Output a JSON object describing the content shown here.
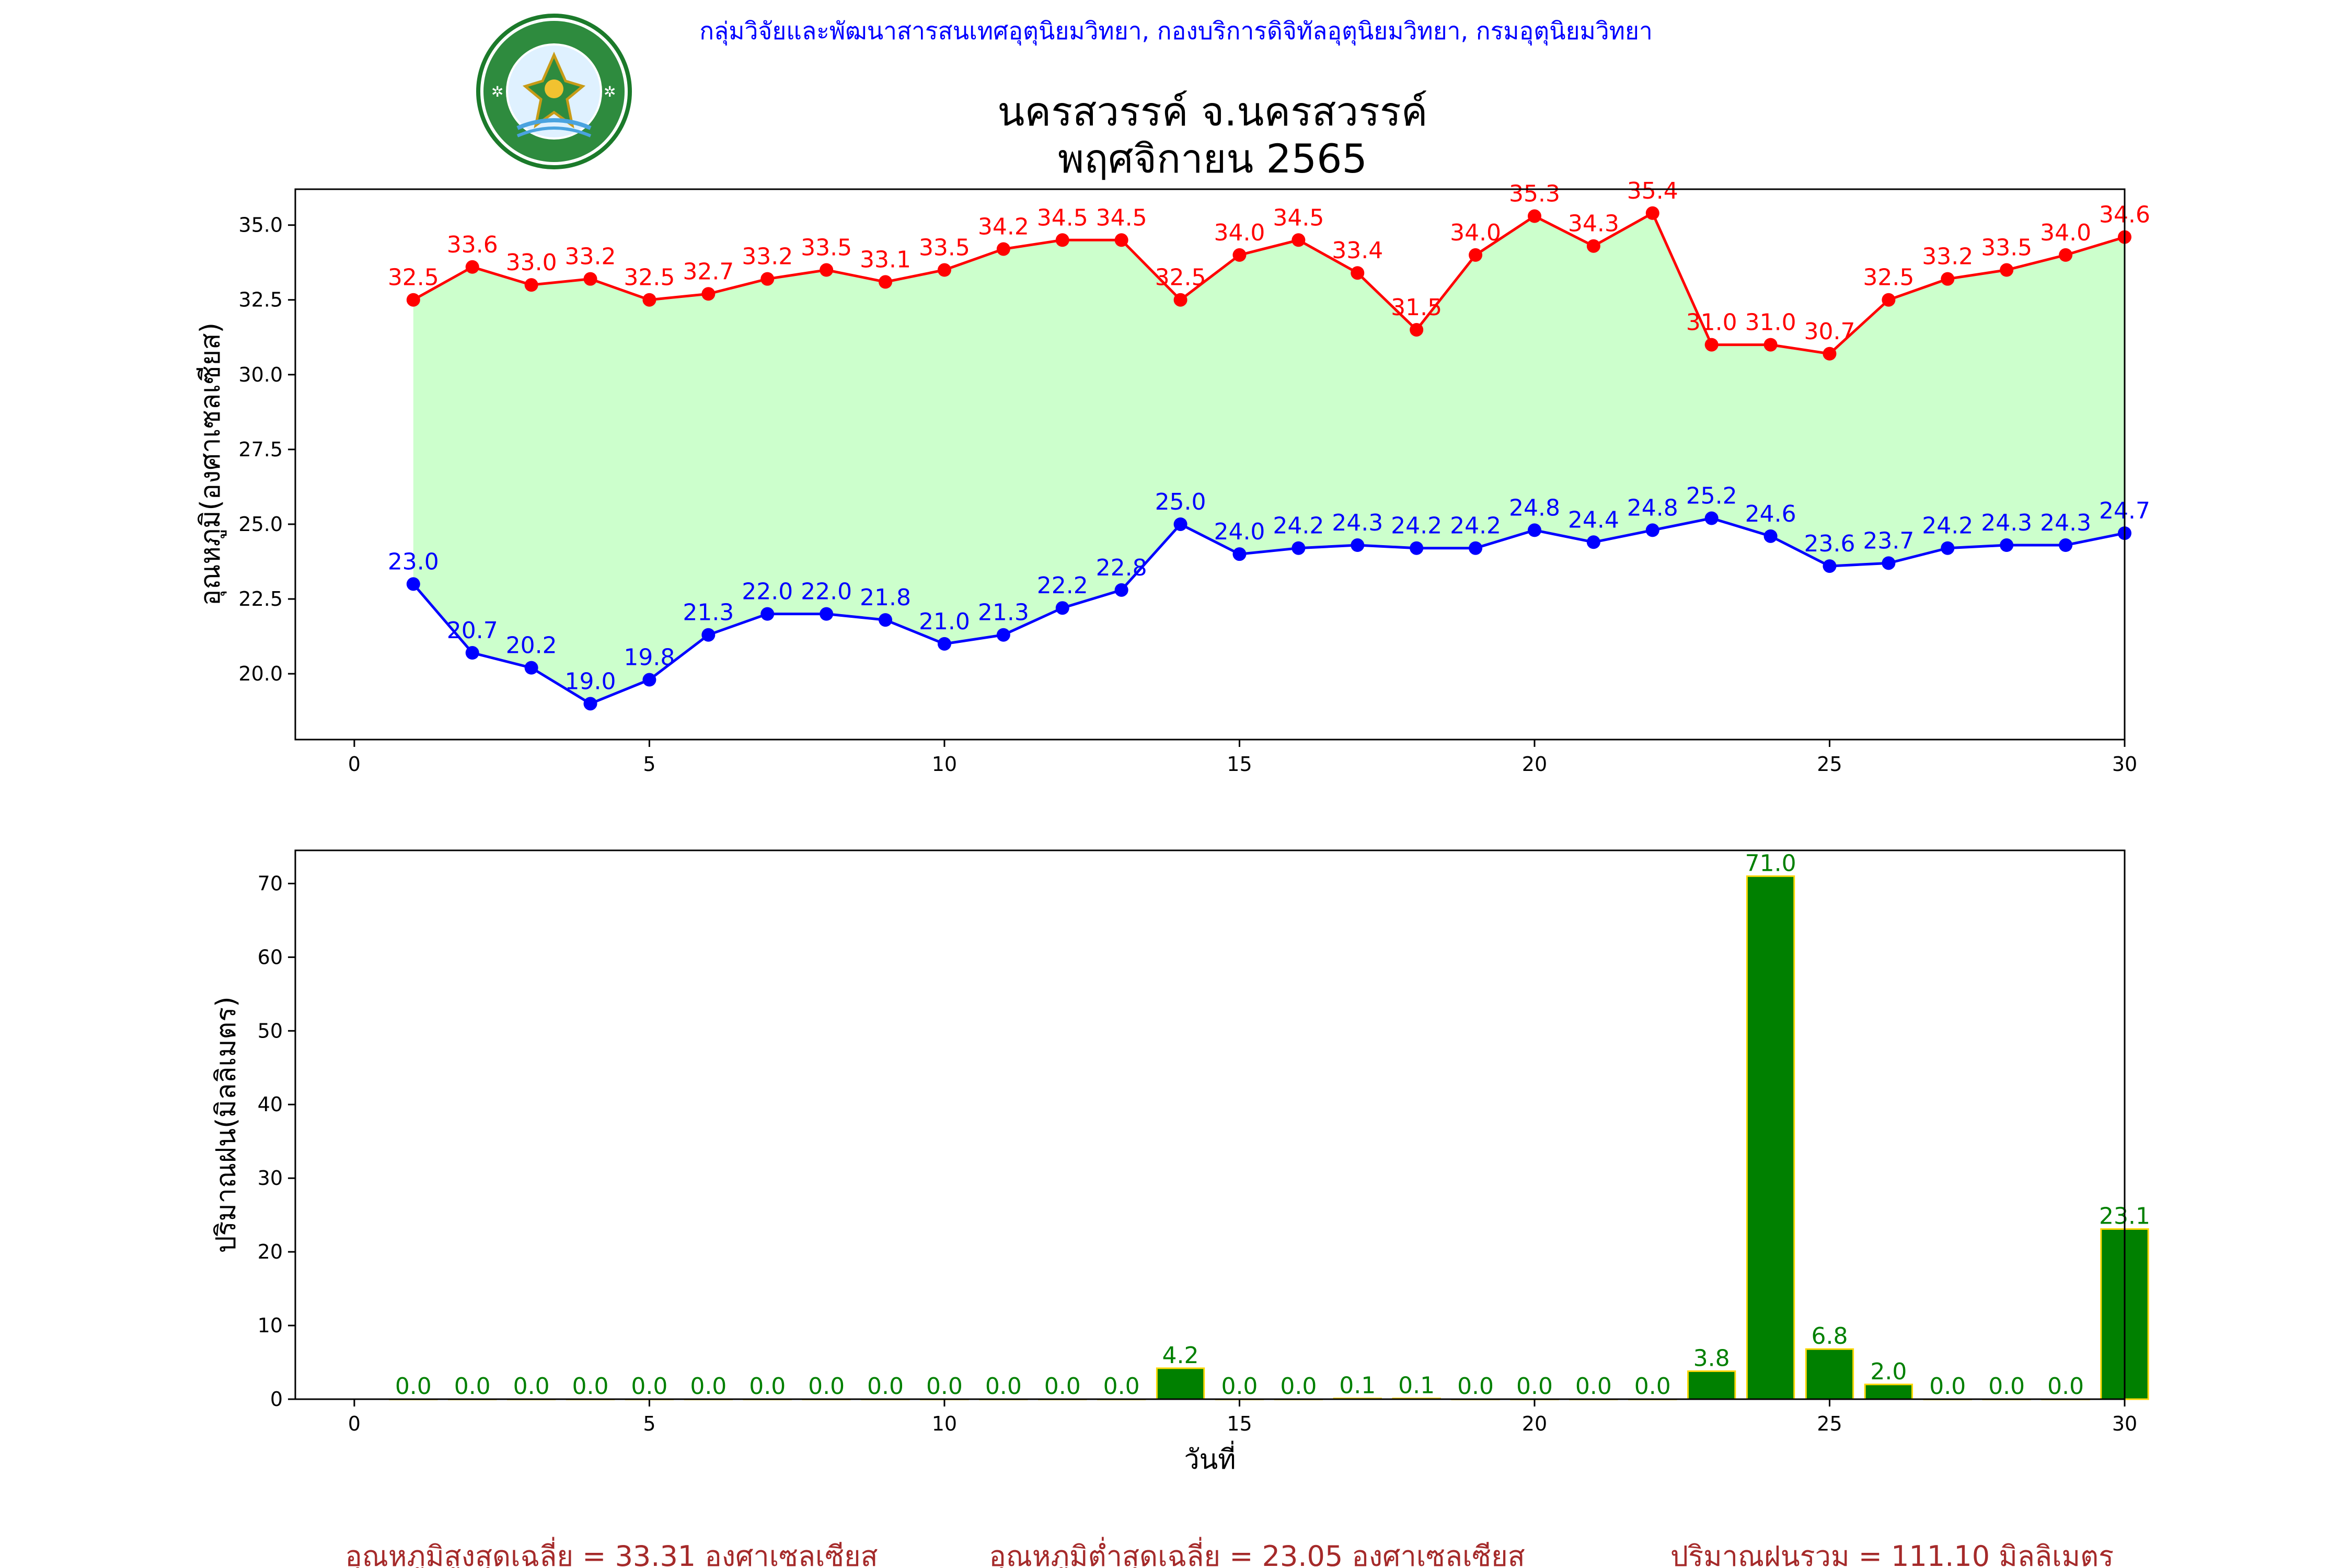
{
  "header": {
    "organization": "กลุ่มวิจัยและพัฒนาสารสนเทศอุตุนิยมวิทยา, กองบริการดิจิทัลอุตุนิยมวิทยา, กรมอุตุนิยมวิทยา",
    "station": "นครสวรรค์  จ.นครสวรรค์",
    "period": "พฤศจิกายน 2565",
    "logo_text_top": "กรมอุตุนิยมวิทยา",
    "logo_text_bottom": "METEOROLOGICAL DEPARTMENT"
  },
  "colors": {
    "max_line": "#ff0000",
    "min_line": "#0000ff",
    "fill": "#ccffcc",
    "rain_bar": "#008000",
    "rain_edge": "#ffd700",
    "footer": "#a52a2a"
  },
  "footer": {
    "avg_max": "อุณหภูมิสูงสุดเฉลี่ย = 33.31 องศาเซลเซียส",
    "avg_min": "อุณหภูมิต่ำสุดเฉลี่ย = 23.05 องศาเซลเซียส",
    "total_rain": "ปริมาณฝนรวม = 111.10 มิลลิเมตร"
  },
  "chart_data": [
    {
      "type": "line",
      "ylabel": "อุณหภูมิ(องศาเซลเซียส)",
      "xlabel": "",
      "xlim": [
        -1,
        30.0
      ],
      "ylim": [
        17.8,
        36.2
      ],
      "xticks": [
        0,
        5,
        10,
        15,
        20,
        25,
        30
      ],
      "yticks": [
        20.0,
        22.5,
        25.0,
        27.5,
        30.0,
        32.5,
        35.0
      ],
      "x": [
        1,
        2,
        3,
        4,
        5,
        6,
        7,
        8,
        9,
        10,
        11,
        12,
        13,
        14,
        15,
        16,
        17,
        18,
        19,
        20,
        21,
        22,
        23,
        24,
        25,
        26,
        27,
        28,
        29,
        30
      ],
      "series": [
        {
          "key": "max",
          "values": [
            32.5,
            33.6,
            33.0,
            33.2,
            32.5,
            32.7,
            33.2,
            33.5,
            33.1,
            33.5,
            34.2,
            34.5,
            34.5,
            32.5,
            34.0,
            34.5,
            33.4,
            31.5,
            34.0,
            35.3,
            34.3,
            35.4,
            31.0,
            31.0,
            30.7,
            32.5,
            33.2,
            33.5,
            34.0,
            34.6
          ]
        },
        {
          "key": "min",
          "values": [
            23.0,
            20.7,
            20.2,
            19.0,
            19.8,
            21.3,
            22.0,
            22.0,
            21.8,
            21.0,
            21.3,
            22.2,
            22.8,
            25.0,
            24.0,
            24.2,
            24.3,
            24.2,
            24.2,
            24.8,
            24.4,
            24.8,
            25.2,
            24.6,
            23.6,
            23.7,
            24.2,
            24.3,
            24.3,
            24.7
          ]
        }
      ]
    },
    {
      "type": "bar",
      "ylabel": "ปริมาณฝน(มิลลิเมตร)",
      "xlabel": "วันที่",
      "xlim": [
        -1,
        30.0
      ],
      "ylim": [
        0,
        74.5
      ],
      "xticks": [
        0,
        5,
        10,
        15,
        20,
        25,
        30
      ],
      "yticks": [
        0,
        10,
        20,
        30,
        40,
        50,
        60,
        70
      ],
      "x": [
        1,
        2,
        3,
        4,
        5,
        6,
        7,
        8,
        9,
        10,
        11,
        12,
        13,
        14,
        15,
        16,
        17,
        18,
        19,
        20,
        21,
        22,
        23,
        24,
        25,
        26,
        27,
        28,
        29,
        30
      ],
      "values": [
        0.0,
        0.0,
        0.0,
        0.0,
        0.0,
        0.0,
        0.0,
        0.0,
        0.0,
        0.0,
        0.0,
        0.0,
        0.0,
        4.2,
        0.0,
        0.0,
        0.1,
        0.1,
        0.0,
        0.0,
        0.0,
        0.0,
        3.8,
        71.0,
        6.8,
        2.0,
        0.0,
        0.0,
        0.0,
        23.1
      ]
    }
  ]
}
